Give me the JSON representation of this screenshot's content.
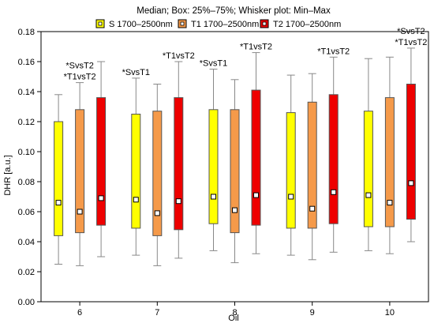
{
  "chart_data": {
    "type": "boxplot",
    "title": "Median; Box: 25%–75%; Whisker plot: Min–Max",
    "xlabel": "Oil",
    "ylabel": "DHR [a.u.]",
    "ylim": [
      0,
      0.18
    ],
    "yticks": [
      "0.00",
      "0.02",
      "0.04",
      "0.06",
      "0.08",
      "0.10",
      "0.12",
      "0.14",
      "0.16",
      "0.18"
    ],
    "categories": [
      "6",
      "7",
      "8",
      "9",
      "10"
    ],
    "legend_position": "top",
    "series": [
      {
        "name": "S 1700–2500nm",
        "color": "#ffff00",
        "min": [
          0.025,
          0.031,
          0.034,
          0.031,
          0.034
        ],
        "q1": [
          0.044,
          0.049,
          0.052,
          0.049,
          0.05
        ],
        "median": [
          0.066,
          0.068,
          0.07,
          0.07,
          0.071
        ],
        "q3": [
          0.12,
          0.125,
          0.128,
          0.126,
          0.127
        ],
        "max": [
          0.138,
          0.149,
          0.155,
          0.151,
          0.162
        ]
      },
      {
        "name": "T1 1700–2500nm",
        "color": "#f59a4a",
        "min": [
          0.024,
          0.024,
          0.026,
          0.028,
          0.032
        ],
        "q1": [
          0.046,
          0.044,
          0.046,
          0.049,
          0.05
        ],
        "median": [
          0.06,
          0.059,
          0.061,
          0.062,
          0.066
        ],
        "q3": [
          0.128,
          0.127,
          0.128,
          0.133,
          0.136
        ],
        "max": [
          0.146,
          0.145,
          0.148,
          0.152,
          0.163
        ]
      },
      {
        "name": "T2 1700–2500nm",
        "color": "#ee0000",
        "min": [
          0.03,
          0.029,
          0.032,
          0.033,
          0.04
        ],
        "q1": [
          0.051,
          0.048,
          0.051,
          0.052,
          0.055
        ],
        "median": [
          0.069,
          0.067,
          0.071,
          0.073,
          0.079
        ],
        "q3": [
          0.136,
          0.136,
          0.141,
          0.138,
          0.145
        ],
        "max": [
          0.16,
          0.16,
          0.166,
          0.163,
          0.169
        ]
      }
    ],
    "annotations": [
      {
        "category": 0,
        "series": 1,
        "lines": [
          "*SvsT2",
          "*T1vsT2"
        ]
      },
      {
        "category": 1,
        "series": 0,
        "lines": [
          "*SvsT1"
        ]
      },
      {
        "category": 1,
        "series": 2,
        "lines": [
          "*T1vsT2"
        ]
      },
      {
        "category": 2,
        "series": 0,
        "lines": [
          "*SvsT1"
        ]
      },
      {
        "category": 2,
        "series": 2,
        "lines": [
          "*T1vsT2"
        ]
      },
      {
        "category": 3,
        "series": 2,
        "lines": [
          "*T1vsT2"
        ]
      },
      {
        "category": 4,
        "series": 2,
        "lines": [
          "*SvsT2",
          "*T1vsT2"
        ]
      }
    ]
  }
}
